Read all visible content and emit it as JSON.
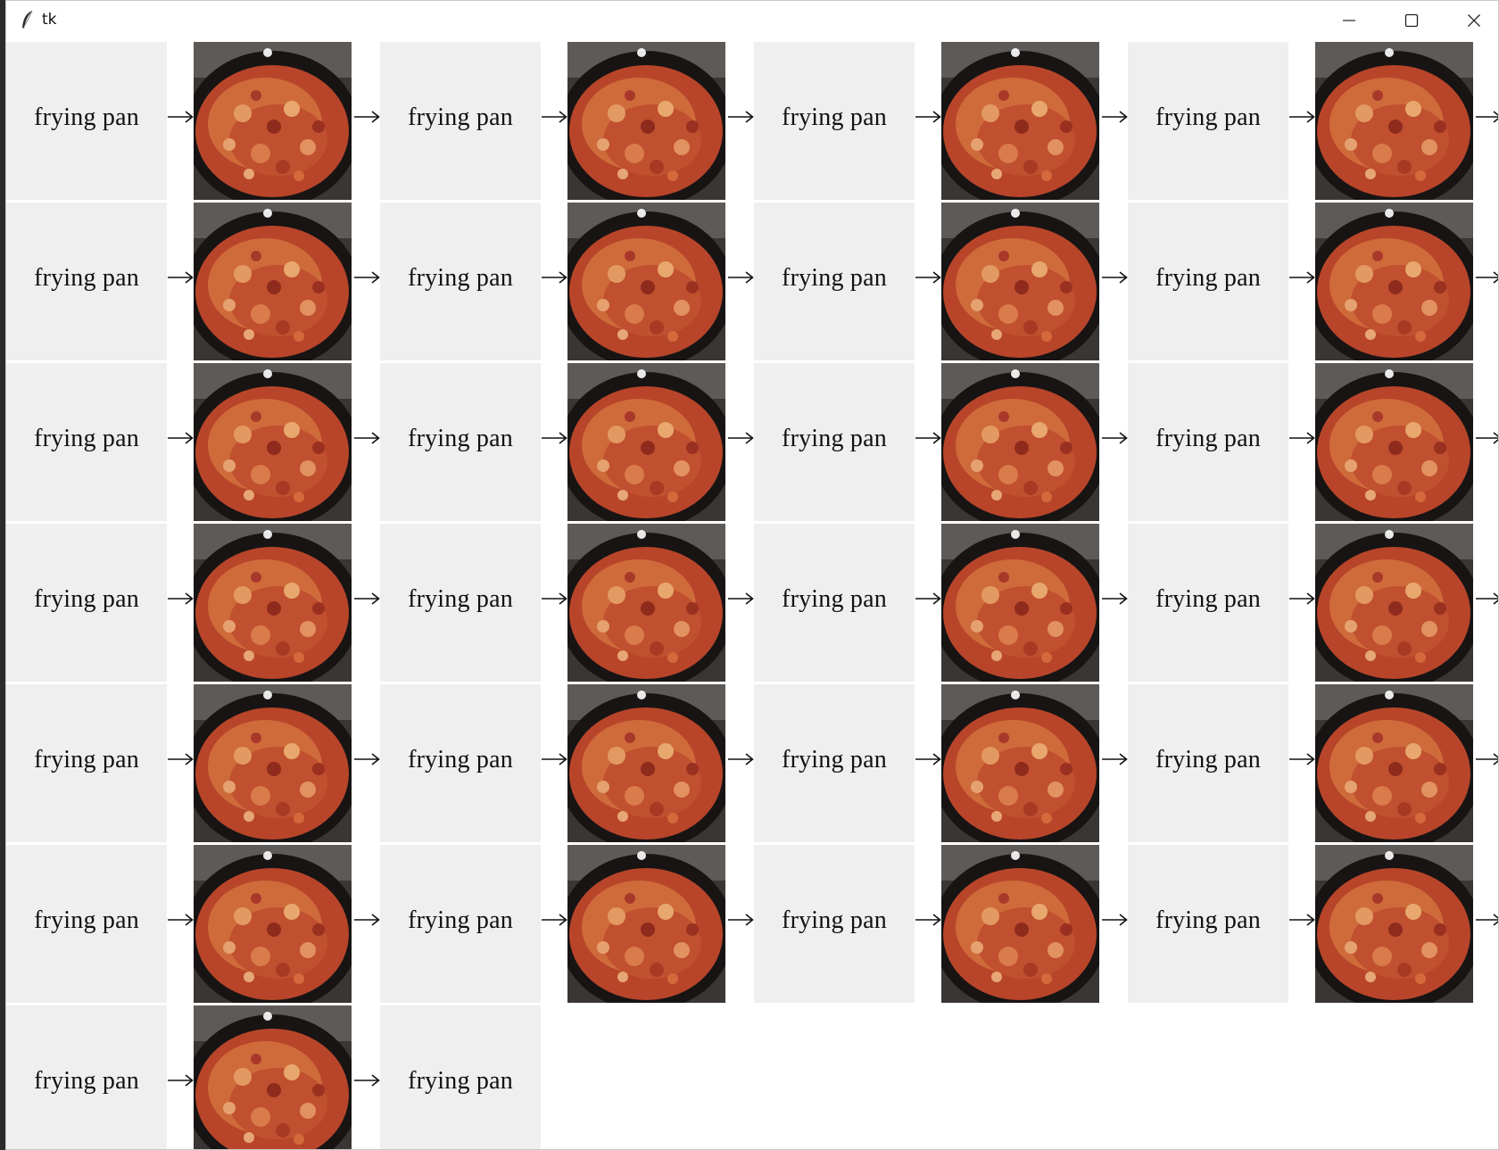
{
  "window": {
    "title": "tk",
    "controls": [
      "minimize-icon",
      "maximize-icon",
      "close-icon"
    ]
  },
  "grid": {
    "rows": [
      [
        "frying pan",
        "frying pan",
        "frying pan",
        "frying pan"
      ],
      [
        "frying pan",
        "frying pan",
        "frying pan",
        "frying pan"
      ],
      [
        "frying pan",
        "frying pan",
        "frying pan",
        "frying pan"
      ],
      [
        "frying pan",
        "frying pan",
        "frying pan",
        "frying pan"
      ],
      [
        "frying pan",
        "frying pan",
        "frying pan",
        "frying pan"
      ],
      [
        "frying pan",
        "frying pan",
        "frying pan",
        "frying pan"
      ],
      [
        "frying pan",
        "frying pan"
      ]
    ],
    "image_icon": "frying-pan-photo",
    "arrow_icon": "right-arrow-icon"
  },
  "colors": {
    "label_bg": "#efefef",
    "image_bg": "#ffffff",
    "pan": "#1b1717",
    "food": "#c9502d"
  }
}
